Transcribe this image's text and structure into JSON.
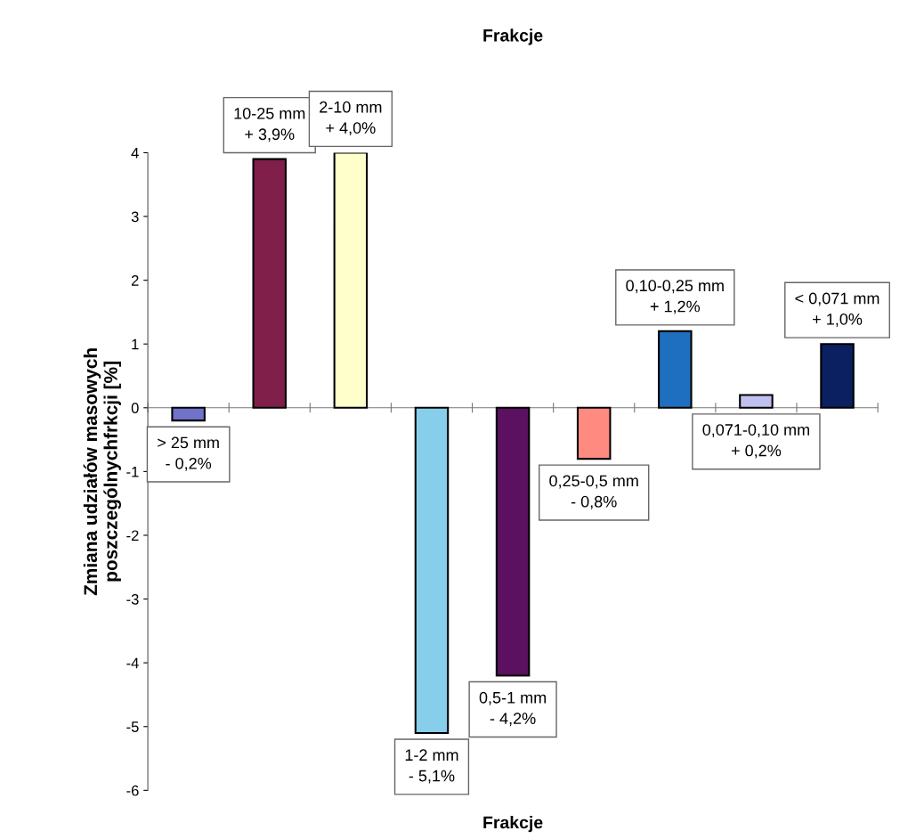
{
  "chart_data": {
    "type": "bar",
    "title": "Frakcje",
    "xlabel": "Frakcje",
    "ylabel": "Zmiana udziałów masowych\nposzczególnychfrkcji [%]",
    "categories": [
      "> 25 mm",
      "10-25 mm",
      "2-10 mm",
      "1-2 mm",
      "0,5-1 mm",
      "0,25-0,5 mm",
      "0,10-0,25 mm",
      "0,071-0,10 mm",
      "< 0,071 mm"
    ],
    "values": [
      -0.2,
      3.9,
      4.0,
      -5.1,
      -4.2,
      -0.8,
      1.2,
      0.2,
      1.0
    ],
    "value_labels": [
      "- 0,2%",
      "+ 3,9%",
      "+ 4,0%",
      "- 5,1%",
      "- 4,2%",
      "- 0,8%",
      "+ 1,2%",
      "+ 0,2%",
      "+ 1,0%"
    ],
    "colors": [
      "#6f72c8",
      "#7f1f4a",
      "#ffffcc",
      "#87ceeb",
      "#5c1060",
      "#ff8a80",
      "#1f6fc0",
      "#c0c0f0",
      "#0a2060"
    ],
    "ylim": [
      -6,
      4
    ],
    "yticks": [
      -6,
      -5,
      -4,
      -3,
      -2,
      -1,
      0,
      1,
      2,
      3,
      4
    ]
  }
}
